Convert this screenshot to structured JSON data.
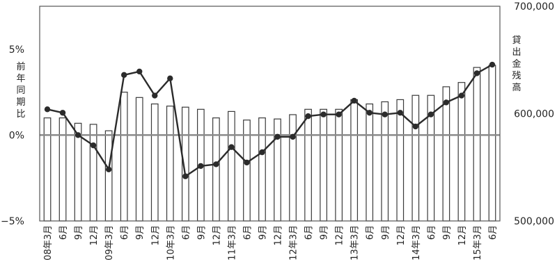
{
  "chart_data": {
    "type": "bar+line",
    "title": "",
    "categories": [
      "08年3月",
      "6月",
      "9月",
      "12月",
      "09年3月",
      "6月",
      "9月",
      "12月",
      "10年3月",
      "6月",
      "9月",
      "12月",
      "11年3月",
      "6月",
      "9月",
      "12月",
      "12年3月",
      "6月",
      "9月",
      "12月",
      "13年3月",
      "6月",
      "9月",
      "12月",
      "14年3月",
      "6月",
      "9月",
      "12月",
      "15年3月",
      "6月"
    ],
    "left_axis": {
      "label": "前年同期比",
      "label_chars": [
        "前",
        "年",
        "同",
        "期",
        "比"
      ],
      "ylim": [
        -5,
        7.5
      ],
      "ticks": [
        {
          "value": 5,
          "label": "5%"
        },
        {
          "value": 0,
          "label": "0%"
        },
        {
          "value": -5,
          "label": "−5%"
        }
      ]
    },
    "right_axis": {
      "label": "貸出金残高",
      "label_chars": [
        "貸",
        "出",
        "金",
        "残",
        "高"
      ],
      "ylim": [
        500000,
        700000
      ],
      "ticks": [
        {
          "value": 700000,
          "label": "700,000"
        },
        {
          "value": 600000,
          "label": "600,000"
        },
        {
          "value": 500000,
          "label": "500,000"
        }
      ]
    },
    "series": [
      {
        "type": "bar",
        "axis": "right",
        "values": [
          596000,
          596000,
          591000,
          590000,
          584000,
          620000,
          615000,
          609000,
          607000,
          606000,
          604000,
          596000,
          602000,
          594000,
          596000,
          595000,
          599000,
          604000,
          604000,
          604000,
          613000,
          609000,
          611000,
          613000,
          617000,
          617000,
          625000,
          629000,
          643000,
          645000
        ]
      },
      {
        "type": "line",
        "axis": "left",
        "values": [
          1.5,
          1.3,
          0.0,
          -0.6,
          -2.0,
          3.5,
          3.7,
          2.3,
          3.3,
          -2.4,
          -1.8,
          -1.7,
          -0.7,
          -1.6,
          -1.0,
          -0.1,
          -0.1,
          1.1,
          1.2,
          1.2,
          2.0,
          1.3,
          1.2,
          1.3,
          0.5,
          1.2,
          1.9,
          2.3,
          3.6,
          4.1
        ]
      }
    ],
    "zero_line": true,
    "grid": false
  }
}
